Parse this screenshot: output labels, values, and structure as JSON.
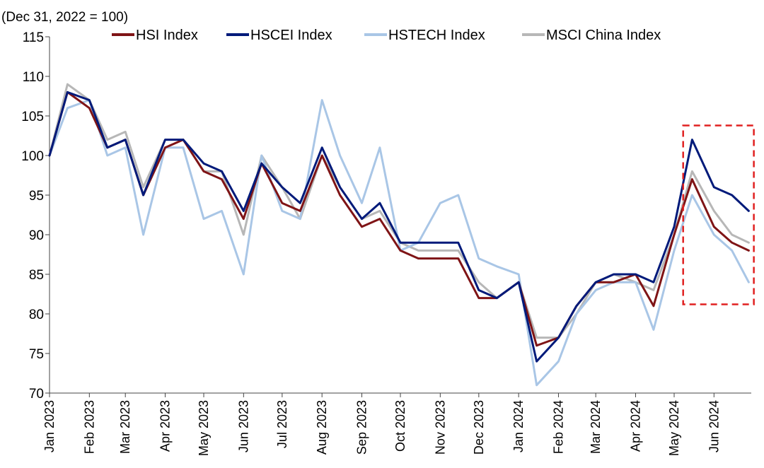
{
  "chart_data": {
    "type": "line",
    "title": "",
    "ylabel_note": "(Dec 31, 2022 = 100)",
    "xlabel": "",
    "ylim": [
      70,
      115
    ],
    "yticks": [
      70,
      75,
      80,
      85,
      90,
      95,
      100,
      105,
      110,
      115
    ],
    "x_tick_labels": [
      "Jan 2023",
      "Feb 2023",
      "Mar 2023",
      "Apr 2023",
      "May 2023",
      "Jun 2023",
      "Jul 2023",
      "Aug 2023",
      "Sep 2023",
      "Oct 2023",
      "Nov 2023",
      "Dec 2023",
      "Jan 2024",
      "Feb 2024",
      "Mar 2024",
      "Apr 2024",
      "May 2024",
      "Jun 2024"
    ],
    "grid": false,
    "legend_position": "top",
    "x": [
      "2023-01-01",
      "2023-01-15",
      "2023-02-01",
      "2023-02-15",
      "2023-03-01",
      "2023-03-15",
      "2023-04-01",
      "2023-04-15",
      "2023-05-01",
      "2023-05-15",
      "2023-06-01",
      "2023-06-15",
      "2023-07-01",
      "2023-07-15",
      "2023-08-01",
      "2023-08-15",
      "2023-09-01",
      "2023-09-15",
      "2023-10-01",
      "2023-10-15",
      "2023-11-01",
      "2023-11-15",
      "2023-12-01",
      "2023-12-15",
      "2024-01-01",
      "2024-01-15",
      "2024-02-01",
      "2024-02-15",
      "2024-03-01",
      "2024-03-15",
      "2024-04-01",
      "2024-04-15",
      "2024-05-01",
      "2024-05-15",
      "2024-06-01",
      "2024-06-15",
      "2024-06-28"
    ],
    "series": [
      {
        "name": "HSI Index",
        "color": "#7f1416",
        "width": 3,
        "values": [
          100,
          108,
          106,
          101,
          102,
          95,
          101,
          102,
          98,
          97,
          92,
          99,
          94,
          93,
          100,
          95,
          91,
          92,
          88,
          87,
          87,
          87,
          82,
          82,
          84,
          76,
          77,
          81,
          84,
          84,
          85,
          81,
          90,
          97,
          91,
          89,
          88
        ]
      },
      {
        "name": "HSCEI Index",
        "color": "#001a7a",
        "width": 3,
        "values": [
          100,
          108,
          107,
          101,
          102,
          95,
          102,
          102,
          99,
          98,
          93,
          99,
          96,
          94,
          101,
          96,
          92,
          94,
          89,
          89,
          89,
          89,
          83,
          82,
          84,
          74,
          77,
          81,
          84,
          85,
          85,
          84,
          91,
          102,
          96,
          95,
          93
        ]
      },
      {
        "name": "HSTECH Index",
        "color": "#a9c6e6",
        "width": 3,
        "values": [
          100,
          106,
          107,
          100,
          101,
          90,
          101,
          101,
          92,
          93,
          85,
          100,
          93,
          92,
          107,
          100,
          94,
          101,
          88,
          89,
          94,
          95,
          87,
          86,
          85,
          71,
          74,
          80,
          83,
          84,
          84,
          78,
          88,
          95,
          90,
          88,
          84
        ]
      },
      {
        "name": "MSCI China Index",
        "color": "#b7b7b7",
        "width": 3,
        "values": [
          100,
          109,
          107,
          102,
          103,
          96,
          102,
          102,
          98,
          98,
          90,
          100,
          96,
          92,
          100,
          96,
          92,
          93,
          89,
          88,
          88,
          88,
          84,
          82,
          84,
          77,
          77,
          80,
          84,
          85,
          84,
          83,
          90,
          98,
          93,
          90,
          89
        ]
      }
    ],
    "highlight": {
      "x_start": "2024-05-08",
      "x_end": "2024-07-02",
      "y_low": 81.2,
      "y_high": 103.8,
      "color": "#e02020",
      "style": "dashed"
    }
  }
}
